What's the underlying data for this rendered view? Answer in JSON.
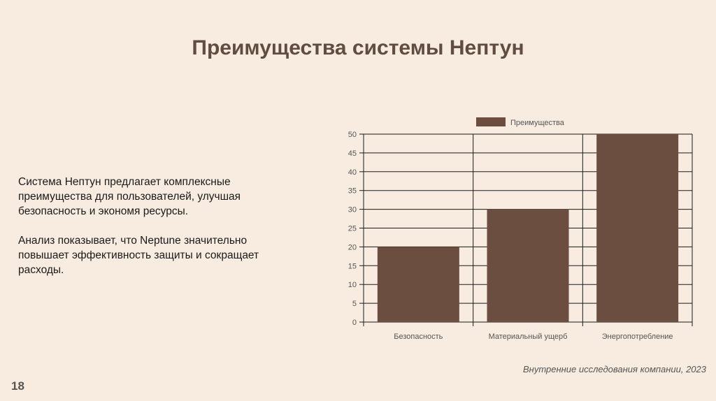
{
  "slide": {
    "title": "Преимущества системы Нептун",
    "paragraphs": [
      "Система Нептун предлагает комплексные преимущества для пользователей, улучшая безопасность и экономя ресурсы.",
      "Анализ показывает, что Neptune значительно повышает эффективность защиты и сокращает расходы."
    ],
    "source": "Внутренние исследования компании, 2023",
    "page_number": "18"
  },
  "chart_data": {
    "type": "bar",
    "categories": [
      "Безопасность",
      "Материальный ущерб",
      "Энергопотребление"
    ],
    "series": [
      {
        "name": "Преимущества",
        "values": [
          20,
          30,
          50
        ]
      }
    ],
    "ylim": [
      0,
      50
    ],
    "yticks": [
      0,
      5,
      10,
      15,
      20,
      25,
      30,
      35,
      40,
      45,
      50
    ],
    "grid": true,
    "legend_position": "top",
    "bar_color": "#6b4e40",
    "text_color": "#555555"
  }
}
